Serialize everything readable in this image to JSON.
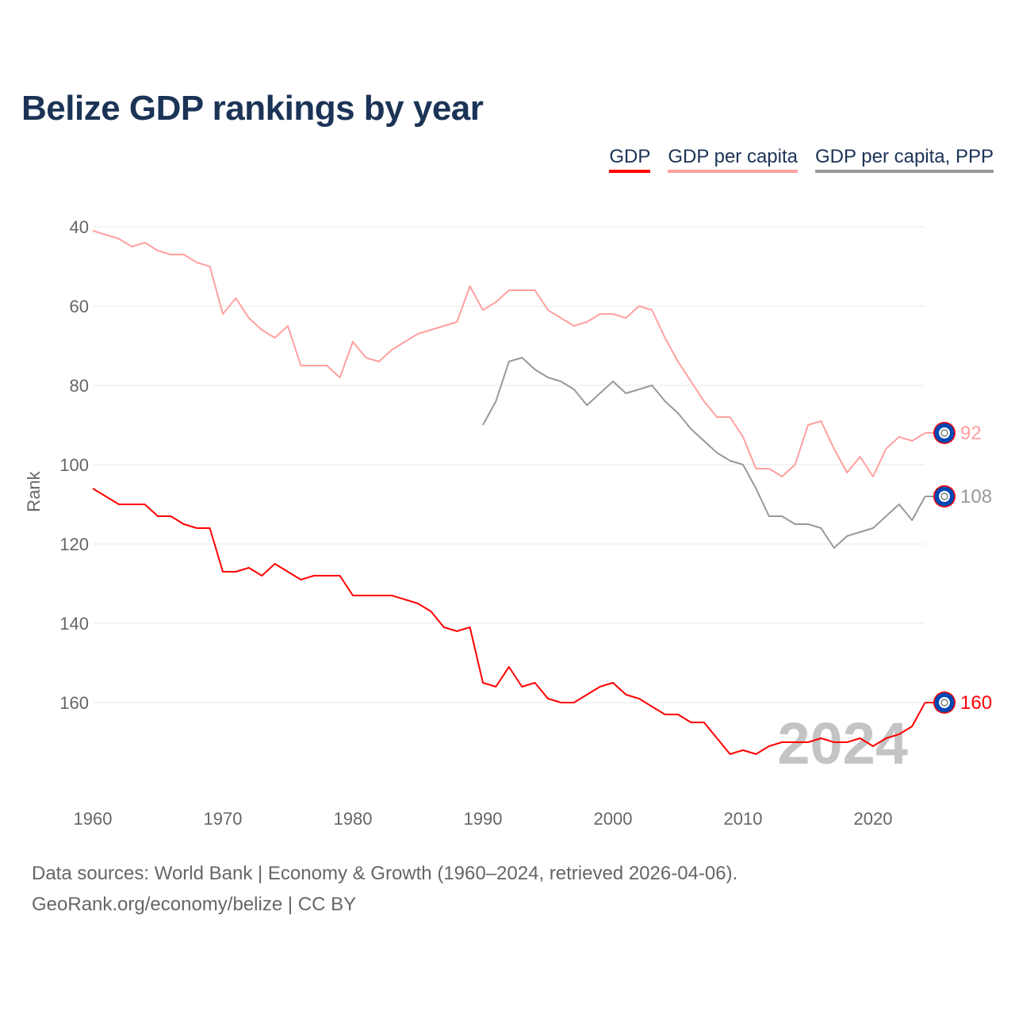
{
  "chart_data": {
    "type": "line",
    "title": "Belize GDP rankings by year",
    "xlabel": "",
    "ylabel": "Rank",
    "x_start": 1960,
    "x_end": 2024,
    "xticks": [
      1960,
      1970,
      1980,
      1990,
      2000,
      2010,
      2020
    ],
    "yticks": [
      40,
      60,
      80,
      100,
      120,
      140,
      160
    ],
    "ylim": [
      37,
      178
    ],
    "y_inverted": true,
    "grid": true,
    "legend_position": "top-right",
    "year_watermark": "2024",
    "series": [
      {
        "name": "GDP",
        "color": "#ff0000",
        "start": 1960,
        "end_label": "160",
        "values": [
          106,
          108,
          110,
          110,
          110,
          113,
          113,
          115,
          116,
          116,
          127,
          127,
          126,
          128,
          125,
          127,
          129,
          128,
          128,
          128,
          133,
          133,
          133,
          133,
          134,
          135,
          137,
          141,
          142,
          141,
          155,
          156,
          151,
          156,
          155,
          159,
          160,
          160,
          158,
          156,
          155,
          158,
          159,
          161,
          163,
          163,
          165,
          165,
          169,
          173,
          172,
          173,
          171,
          170,
          170,
          170,
          169,
          170,
          170,
          169,
          171,
          169,
          168,
          166,
          160
        ]
      },
      {
        "name": "GDP per capita",
        "color": "#ffa0a0",
        "start": 1960,
        "end_label": "92",
        "values": [
          41,
          42,
          43,
          45,
          44,
          46,
          47,
          47,
          49,
          50,
          62,
          58,
          63,
          66,
          68,
          65,
          75,
          75,
          75,
          78,
          69,
          73,
          74,
          71,
          69,
          67,
          66,
          65,
          64,
          55,
          61,
          59,
          56,
          56,
          56,
          61,
          63,
          65,
          64,
          62,
          62,
          63,
          60,
          61,
          68,
          74,
          79,
          84,
          88,
          88,
          93,
          101,
          101,
          103,
          100,
          90,
          89,
          96,
          102,
          98,
          103,
          96,
          93,
          94,
          92
        ]
      },
      {
        "name": "GDP per capita, PPP",
        "color": "#999999",
        "start": 1990,
        "end_label": "108",
        "values": [
          90,
          84,
          74,
          73,
          76,
          78,
          79,
          81,
          85,
          82,
          79,
          82,
          81,
          80,
          84,
          87,
          91,
          94,
          97,
          99,
          100,
          106,
          113,
          113,
          115,
          115,
          116,
          121,
          118,
          117,
          116,
          113,
          110,
          114,
          108
        ]
      }
    ]
  },
  "footer": {
    "line1": "Data sources: World Bank | Economy & Growth (1960–2024, retrieved 2026-04-06).",
    "line2": "GeoRank.org/economy/belize | CC BY"
  }
}
